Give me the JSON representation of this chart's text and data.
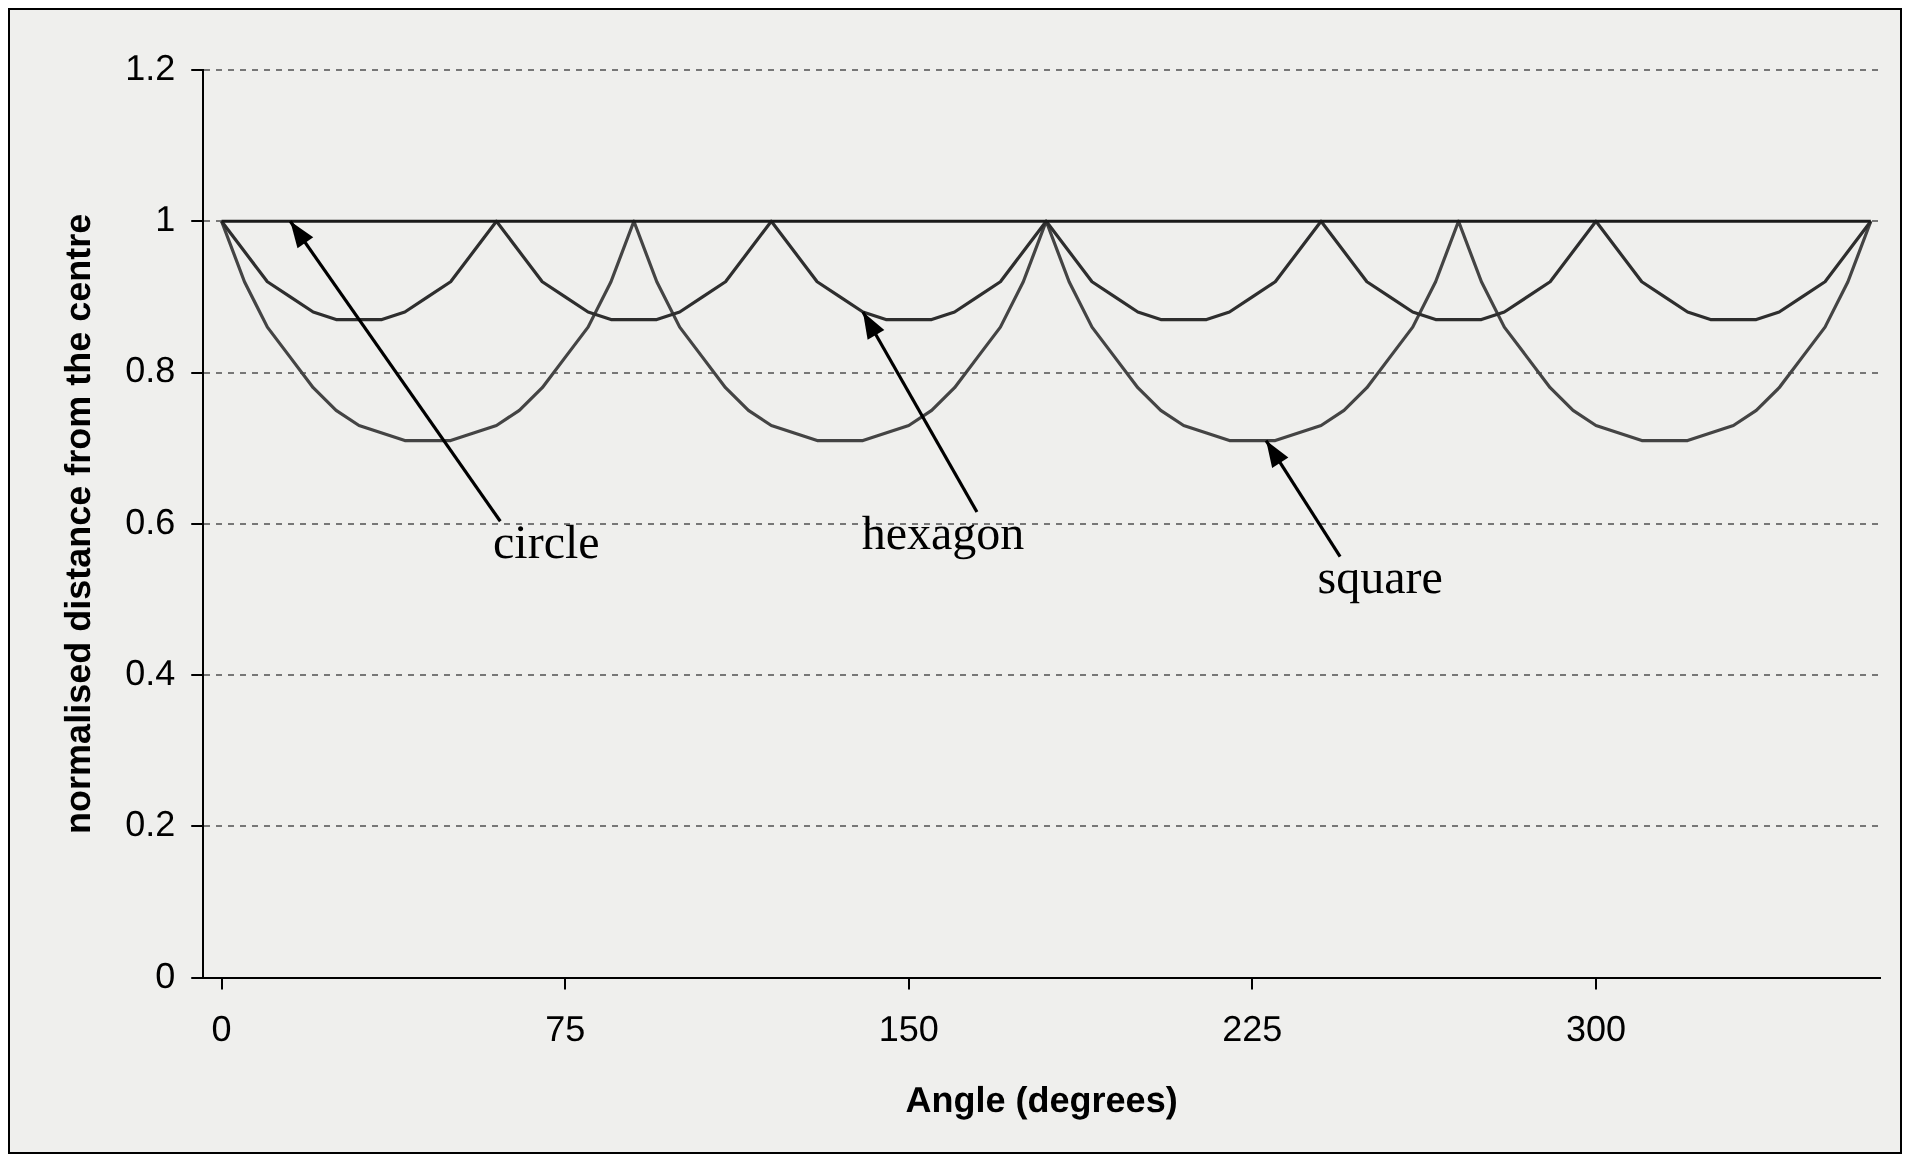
{
  "chart_data": {
    "type": "line",
    "xlabel": "Angle (degrees)",
    "ylabel": "normalised distance from the centre",
    "xlim": [
      -4,
      362
    ],
    "xticks": [
      0,
      75,
      150,
      225,
      300
    ],
    "ylim": [
      0,
      1.2
    ],
    "yticks": [
      0,
      0.2,
      0.4,
      0.6,
      0.8,
      1,
      1.2
    ],
    "grid": "y",
    "marker": "none",
    "line_style": "solid",
    "series": [
      {
        "color": "#1a1a1a",
        "x": [
          0,
          360
        ],
        "values": [
          1,
          1
        ]
      },
      {
        "color": "#2e2e2e",
        "x": [
          0,
          5,
          10,
          15,
          20,
          25,
          30,
          35,
          40,
          45,
          50,
          55,
          60,
          65,
          70,
          75,
          80,
          85,
          90,
          95,
          100,
          105,
          110,
          115,
          120,
          125,
          130,
          135,
          140,
          145,
          150,
          155,
          160,
          165,
          170,
          175,
          180,
          185,
          190,
          195,
          200,
          205,
          210,
          215,
          220,
          225,
          230,
          235,
          240,
          245,
          250,
          255,
          260,
          265,
          270,
          275,
          280,
          285,
          290,
          295,
          300,
          305,
          310,
          315,
          320,
          325,
          330,
          335,
          340,
          345,
          350,
          355,
          360
        ],
        "values": [
          1,
          0.96,
          0.92,
          0.9,
          0.88,
          0.87,
          0.87,
          0.87,
          0.88,
          0.9,
          0.92,
          0.96,
          1,
          0.96,
          0.92,
          0.9,
          0.88,
          0.87,
          0.87,
          0.87,
          0.88,
          0.9,
          0.92,
          0.96,
          1,
          0.96,
          0.92,
          0.9,
          0.88,
          0.87,
          0.87,
          0.87,
          0.88,
          0.9,
          0.92,
          0.96,
          1,
          0.96,
          0.92,
          0.9,
          0.88,
          0.87,
          0.87,
          0.87,
          0.88,
          0.9,
          0.92,
          0.96,
          1,
          0.96,
          0.92,
          0.9,
          0.88,
          0.87,
          0.87,
          0.87,
          0.88,
          0.9,
          0.92,
          0.96,
          1,
          0.96,
          0.92,
          0.9,
          0.88,
          0.87,
          0.87,
          0.87,
          0.88,
          0.9,
          0.92,
          0.96,
          1
        ]
      },
      {
        "color": "#444444",
        "x": [
          0,
          5,
          10,
          15,
          20,
          25,
          30,
          35,
          40,
          45,
          50,
          55,
          60,
          65,
          70,
          75,
          80,
          85,
          90,
          95,
          100,
          105,
          110,
          115,
          120,
          125,
          130,
          135,
          140,
          145,
          150,
          155,
          160,
          165,
          170,
          175,
          180,
          185,
          190,
          195,
          200,
          205,
          210,
          215,
          220,
          225,
          230,
          235,
          240,
          245,
          250,
          255,
          260,
          265,
          270,
          275,
          280,
          285,
          290,
          295,
          300,
          305,
          310,
          315,
          320,
          325,
          330,
          335,
          340,
          345,
          350,
          355,
          360
        ],
        "values": [
          1,
          0.92,
          0.86,
          0.82,
          0.78,
          0.75,
          0.73,
          0.72,
          0.71,
          0.71,
          0.71,
          0.72,
          0.73,
          0.75,
          0.78,
          0.82,
          0.86,
          0.92,
          1,
          0.92,
          0.86,
          0.82,
          0.78,
          0.75,
          0.73,
          0.72,
          0.71,
          0.71,
          0.71,
          0.72,
          0.73,
          0.75,
          0.78,
          0.82,
          0.86,
          0.92,
          1,
          0.92,
          0.86,
          0.82,
          0.78,
          0.75,
          0.73,
          0.72,
          0.71,
          0.71,
          0.71,
          0.72,
          0.73,
          0.75,
          0.78,
          0.82,
          0.86,
          0.92,
          1,
          0.92,
          0.86,
          0.82,
          0.78,
          0.75,
          0.73,
          0.72,
          0.71,
          0.71,
          0.71,
          0.72,
          0.73,
          0.75,
          0.78,
          0.82,
          0.86,
          0.92,
          1
        ]
      }
    ],
    "annotations": [
      {
        "text": "circle",
        "x": 15,
        "y": 1
      },
      {
        "text": "hexagon",
        "x": 140,
        "y": 0.88
      },
      {
        "text": "square",
        "x": 228,
        "y": 0.71
      }
    ]
  }
}
